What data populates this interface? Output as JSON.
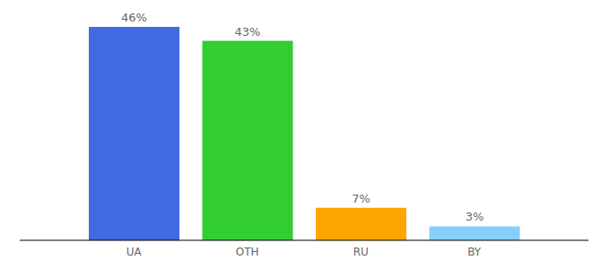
{
  "chart_data": {
    "type": "bar",
    "categories": [
      "UA",
      "OTH",
      "RU",
      "BY"
    ],
    "values": [
      46,
      43,
      7,
      3
    ],
    "value_labels": [
      "46%",
      "43%",
      "7%",
      "3%"
    ],
    "colors": [
      "#4169e1",
      "#32cd32",
      "#ffa500",
      "#87cefa"
    ],
    "ylim": [
      0,
      46
    ],
    "data_labels": true,
    "tick_labels": "x",
    "grid": false
  }
}
